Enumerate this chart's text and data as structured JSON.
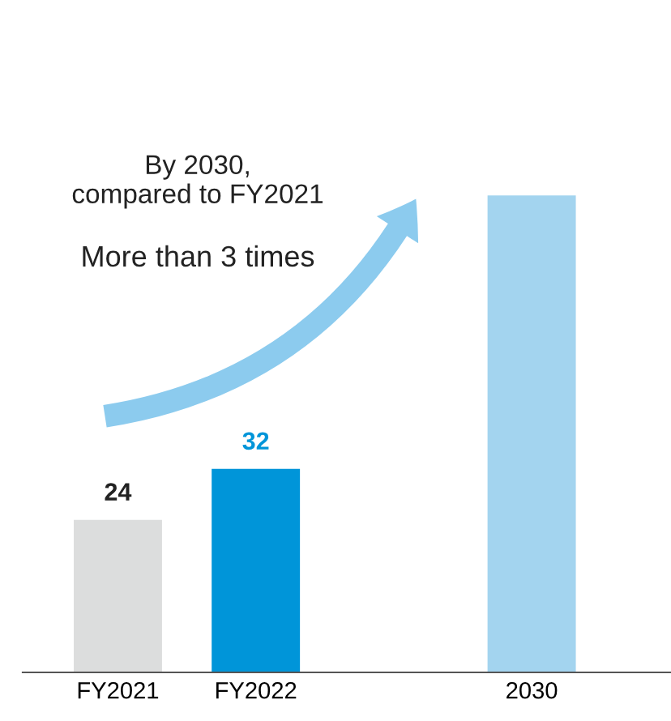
{
  "chart_data": {
    "type": "bar",
    "categories": [
      "FY2021",
      "FY2022",
      null,
      "2030"
    ],
    "values": [
      24,
      32,
      null,
      75
    ],
    "colors": [
      "#dcdddd",
      "#0095d9",
      "#ffffff",
      "#a3d4ef"
    ],
    "value_labels": [
      "24",
      "32",
      null,
      null
    ],
    "annotations": [
      "By 2030,\ncompared to FY2021",
      "More than 3 times"
    ],
    "grid": false,
    "legend": false
  }
}
